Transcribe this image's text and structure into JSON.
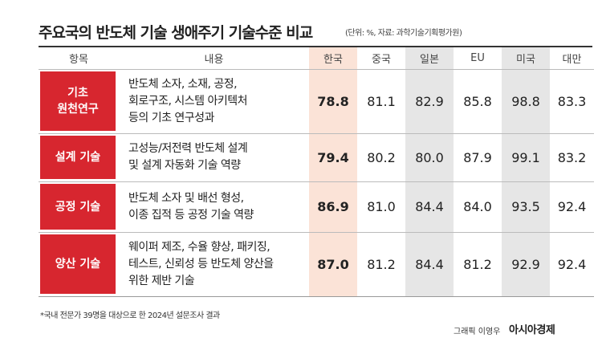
{
  "header": {
    "title": "주요국의 반도체 기술 생애주기 기술수준 비교",
    "subtitle": "(단위: %, 자료: 과학기술기획평가원)"
  },
  "table": {
    "columns": [
      "항목",
      "내용",
      "한국",
      "중국",
      "일본",
      "EU",
      "미국",
      "대만"
    ],
    "rows": [
      {
        "category": [
          "기초",
          "원천연구"
        ],
        "content": [
          "반도체 소자, 소재, 공정,",
          "회로구조, 시스템 아키텍처",
          "등의 기초 연구성과"
        ],
        "values": [
          "78.8",
          "81.1",
          "82.9",
          "85.8",
          "98.8",
          "83.3"
        ]
      },
      {
        "category": [
          "설계 기술"
        ],
        "content": [
          "고성능/저전력 반도체 설계",
          "및 설계 자동화 기술 역량"
        ],
        "values": [
          "79.4",
          "80.2",
          "80.0",
          "87.9",
          "99.1",
          "83.2"
        ]
      },
      {
        "category": [
          "공정 기술"
        ],
        "content": [
          "반도체 소자 및 배선 형성,",
          "이종 집적 등 공정 기술 역량"
        ],
        "values": [
          "86.9",
          "81.0",
          "84.4",
          "84.0",
          "93.5",
          "92.4"
        ]
      },
      {
        "category": [
          "양산 기술"
        ],
        "content": [
          "웨이퍼 제조, 수율 향상, 패키징,",
          "테스트, 신뢰성 등 반도체 양산을",
          "위한 제반 기술"
        ],
        "values": [
          "87.0",
          "81.2",
          "84.4",
          "81.2",
          "92.9",
          "92.4"
        ]
      }
    ]
  },
  "footer": {
    "note": "*국내 전문가 39명을 대상으로 한 2024년 설문조사 결과",
    "credit": "그래픽 이영우",
    "brand": "아시아경제"
  }
}
